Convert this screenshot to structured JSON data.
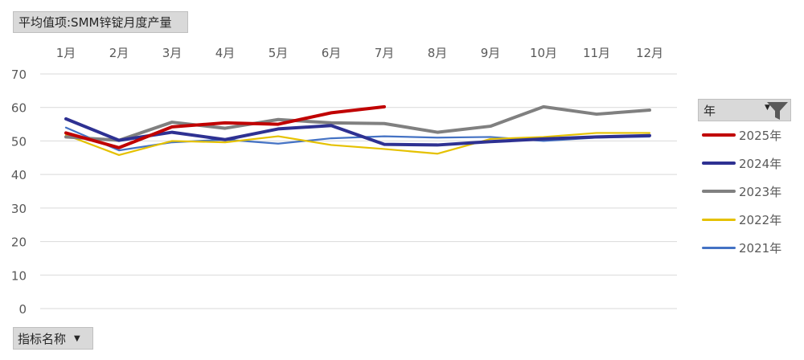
{
  "filters": {
    "value_field_label": "平均值项:SMM锌锭月度产量",
    "row_field_label": "指标名称",
    "legend_field_label": "年"
  },
  "chart_data": {
    "type": "line",
    "title": "",
    "xlabel": "",
    "ylabel": "",
    "categories": [
      "1月",
      "2月",
      "3月",
      "4月",
      "5月",
      "6月",
      "7月",
      "8月",
      "9月",
      "10月",
      "11月",
      "12月"
    ],
    "ylim": [
      0,
      70
    ],
    "yticks": [
      0,
      10,
      20,
      30,
      40,
      50,
      60,
      70
    ],
    "grid": true,
    "x_axis_position": "top",
    "legend_position": "right",
    "series": [
      {
        "name": "2021年",
        "color": "#4472c4",
        "values": [
          54.0,
          47.2,
          49.6,
          50.4,
          49.2,
          50.8,
          51.4,
          51.0,
          51.2,
          50.0,
          51.0,
          51.3
        ]
      },
      {
        "name": "2022年",
        "color": "#e5c100",
        "values": [
          51.8,
          45.8,
          50.0,
          49.6,
          51.4,
          48.8,
          47.6,
          46.2,
          50.6,
          51.2,
          52.4,
          52.4
        ]
      },
      {
        "name": "2023年",
        "color": "#808080",
        "values": [
          51.2,
          50.2,
          55.6,
          53.8,
          56.4,
          55.4,
          55.2,
          52.6,
          54.4,
          60.2,
          58.0,
          59.2
        ]
      },
      {
        "name": "2024年",
        "color": "#2e3192",
        "values": [
          56.6,
          50.2,
          52.6,
          50.4,
          53.6,
          54.6,
          49.0,
          48.8,
          49.8,
          50.6,
          51.2,
          51.6
        ]
      },
      {
        "name": "2025年",
        "color": "#c00000",
        "values": [
          52.4,
          48.0,
          54.2,
          55.4,
          55.0,
          58.4,
          60.2,
          null,
          null,
          null,
          null,
          null
        ]
      }
    ]
  }
}
